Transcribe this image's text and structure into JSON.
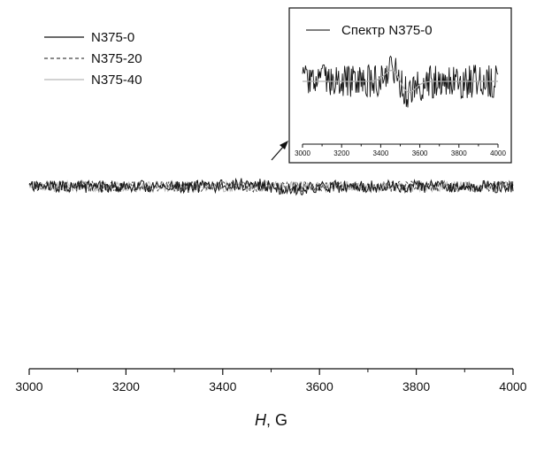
{
  "chart_data": [
    {
      "type": "line",
      "role": "main",
      "xlabel_italic": "H",
      "xlabel_rest": ", G",
      "xlim": [
        3000,
        4000
      ],
      "x_ticks": [
        3000,
        3200,
        3400,
        3600,
        3800,
        4000
      ],
      "x_tick_labels": [
        "3000",
        "3200",
        "3400",
        "3600",
        "3800",
        "4000"
      ],
      "y_axis_shown": false,
      "grid": false,
      "legend_position": "top-left",
      "x_range_data": [
        3000,
        4000
      ],
      "series": [
        {
          "name": "N375-0",
          "color": "#111111",
          "style": "solid",
          "shape": "weak absorption derivative near 3450–3550 G over noise"
        },
        {
          "name": "N375-20",
          "color": "#444444",
          "style": "dashed",
          "shape": "flat noisy baseline"
        },
        {
          "name": "N375-40",
          "color": "#b8b8b8",
          "style": "solid",
          "shape": "flat noisy baseline"
        }
      ]
    },
    {
      "type": "line",
      "role": "inset",
      "legend_label": "Спектр N375-0",
      "xlim": [
        3000,
        4000
      ],
      "x_ticks": [
        3000,
        3200,
        3400,
        3600,
        3800,
        4000
      ],
      "x_tick_labels": [
        "3000",
        "3200",
        "3400",
        "3600",
        "3800",
        "4000"
      ],
      "y_axis_shown": false,
      "grid": false,
      "series": [
        {
          "name": "Спектр N375-0",
          "color": "#111111",
          "style": "solid",
          "shape": "noisy derivative: positive lobe near 3460 G, negative lobe near 3540 G"
        },
        {
          "name": "",
          "color": "#b0b0b0",
          "style": "solid",
          "shape": "smoothed fit"
        }
      ]
    }
  ]
}
